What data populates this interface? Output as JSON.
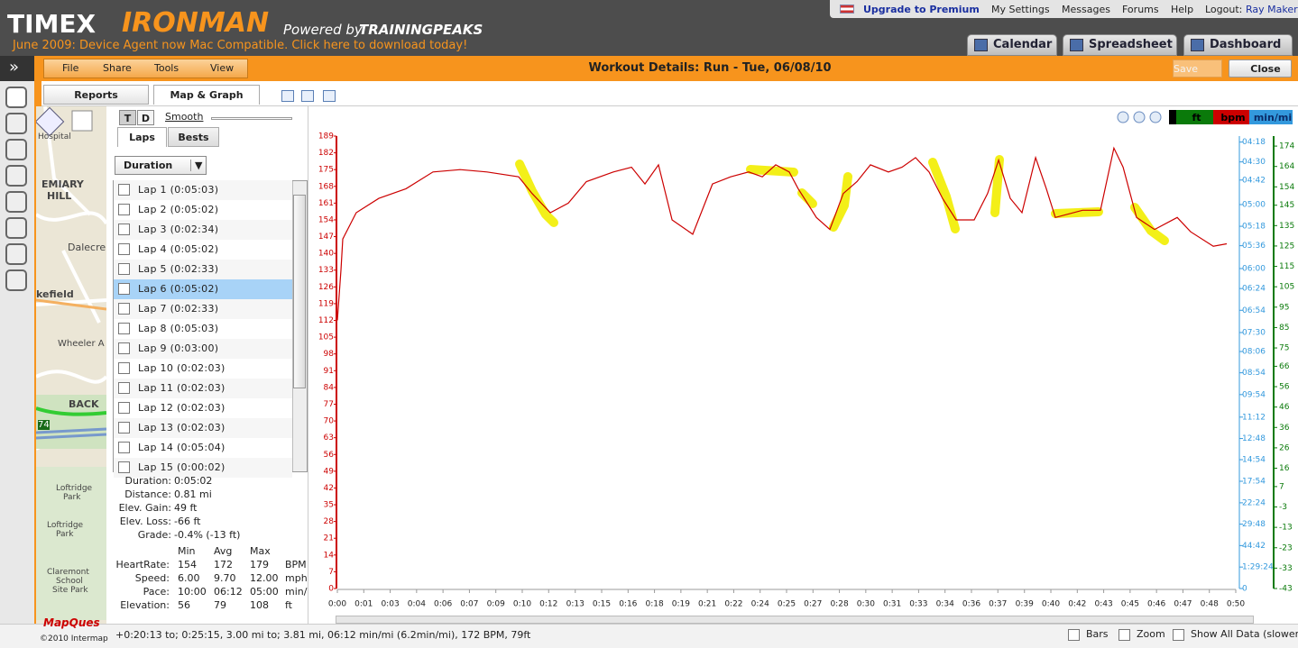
{
  "header": {
    "brand": "TIMEX",
    "brand_highlight": "IRONMAN",
    "powered_by": "Powered by",
    "partner": "TRAININGPEAKS",
    "announcement": "June 2009: Device Agent now Mac Compatible. Click here to download today!",
    "links": [
      "Upgrade to Premium",
      "My Settings",
      "Messages",
      "Forums",
      "Help"
    ],
    "logout_label": "Logout:",
    "user": "Ray Maker",
    "tabs": [
      "Calendar",
      "Spreadsheet",
      "Dashboard"
    ]
  },
  "sidebar": {
    "toggle": "»"
  },
  "toolbar": {
    "menus": [
      "File",
      "Share",
      "Tools",
      "View"
    ],
    "title": "Workout Details: Run - Tue, 06/08/10",
    "save": "Save",
    "close": "Close"
  },
  "view_tabs": [
    "Reports",
    "Map & Graph"
  ],
  "map": {
    "labels": [
      "Hospital",
      "EMIARY",
      "HILL",
      "Dalecre",
      "kefield",
      "Wheeler A",
      "BACK",
      "74",
      "Loftridge",
      "Park",
      "Loftridge",
      "Park",
      "Claremont",
      "School",
      "Site Park"
    ],
    "provider": "MapQues",
    "copyright": "©2010 Intermap"
  },
  "laps_panel": {
    "modes": [
      "T",
      "D"
    ],
    "smooth": "Smooth",
    "tabs": [
      "Laps",
      "Bests"
    ],
    "sort": "Duration",
    "laps": [
      "Lap 1 (0:05:03)",
      "Lap 2 (0:05:02)",
      "Lap 3 (0:02:34)",
      "Lap 4 (0:05:02)",
      "Lap 5 (0:02:33)",
      "Lap 6 (0:05:02)",
      "Lap 7 (0:02:33)",
      "Lap 8 (0:05:03)",
      "Lap 9 (0:03:00)",
      "Lap 10 (0:02:03)",
      "Lap 11 (0:02:03)",
      "Lap 12 (0:02:03)",
      "Lap 13 (0:02:03)",
      "Lap 14 (0:05:04)",
      "Lap 15 (0:00:02)"
    ],
    "selected": 5
  },
  "summary": {
    "rows": [
      [
        "Duration:",
        "0:05:02"
      ],
      [
        "Distance:",
        "0.81 mi"
      ],
      [
        "Elev. Gain:",
        "49 ft"
      ],
      [
        "Elev. Loss:",
        "-66 ft"
      ],
      [
        "Grade:",
        "-0.4% (-13 ft)"
      ]
    ],
    "table": {
      "header": [
        "Min",
        "Avg",
        "Max"
      ],
      "rows": [
        [
          "HeartRate:",
          "154",
          "172",
          "179",
          "BPM"
        ],
        [
          "Speed:",
          "6.00",
          "9.70",
          "12.00",
          "mph"
        ],
        [
          "Pace:",
          "10:00",
          "06:12",
          "05:00",
          "min/"
        ],
        [
          "Elevation:",
          "56",
          "79",
          "108",
          "ft"
        ]
      ]
    }
  },
  "chart_data": {
    "type": "line",
    "color": "#cc0000",
    "legend": [
      {
        "label": "ft",
        "color": "#0a7a0a"
      },
      {
        "label": "bpm",
        "color": "#cc0000"
      },
      {
        "label": "min/mi",
        "color": "#3399dd"
      }
    ],
    "x": [
      0,
      0.2,
      0.3,
      1.05,
      2.31,
      3.82,
      5.32,
      6.83,
      8.33,
      10.09,
      10.84,
      11.85,
      12.85,
      13.86,
      15.36,
      16.37,
      17.12,
      17.87,
      18.63,
      19.78,
      20.88,
      21.89,
      22.89,
      23.65,
      24.4,
      25.15,
      25.65,
      26.66,
      27.41,
      28.16,
      28.92,
      29.67,
      30.67,
      31.43,
      32.18,
      32.93,
      33.68,
      34.44,
      35.44,
      36.19,
      36.8,
      37.45,
      38.1,
      38.86,
      39.46,
      39.96,
      41.47,
      42.47,
      43.22,
      43.73,
      44.48,
      45.48,
      46.74,
      47.49,
      48.75,
      49.5
    ],
    "values": [
      112,
      133,
      146,
      157,
      163,
      167,
      174,
      175,
      174,
      172,
      165,
      157,
      161,
      170,
      174,
      176,
      169,
      177,
      154,
      148,
      169,
      172,
      174,
      172,
      177,
      174,
      167,
      155,
      150,
      165,
      170,
      177,
      174,
      176,
      180,
      174,
      163,
      154,
      154,
      165,
      179,
      163,
      157,
      180,
      167,
      155,
      158,
      158,
      184,
      176,
      155,
      150,
      155,
      149,
      143,
      144
    ],
    "xlim": [
      0,
      50
    ],
    "xticks": [
      {
        "value": 0,
        "label": "0:00"
      },
      {
        "value": 1.47,
        "label": "0:01"
      },
      {
        "value": 2.94,
        "label": "0:03"
      },
      {
        "value": 4.41,
        "label": "0:04"
      },
      {
        "value": 5.88,
        "label": "0:06"
      },
      {
        "value": 7.35,
        "label": "0:07"
      },
      {
        "value": 8.82,
        "label": "0:09"
      },
      {
        "value": 10.29,
        "label": "0:10"
      },
      {
        "value": 11.76,
        "label": "0:12"
      },
      {
        "value": 13.24,
        "label": "0:13"
      },
      {
        "value": 14.71,
        "label": "0:15"
      },
      {
        "value": 16.18,
        "label": "0:16"
      },
      {
        "value": 17.65,
        "label": "0:18"
      },
      {
        "value": 19.12,
        "label": "0:19"
      },
      {
        "value": 20.59,
        "label": "0:21"
      },
      {
        "value": 22.06,
        "label": "0:22"
      },
      {
        "value": 23.53,
        "label": "0:24"
      },
      {
        "value": 25,
        "label": "0:25"
      },
      {
        "value": 26.47,
        "label": "0:27"
      },
      {
        "value": 27.94,
        "label": "0:28"
      },
      {
        "value": 29.41,
        "label": "0:30"
      },
      {
        "value": 30.88,
        "label": "0:31"
      },
      {
        "value": 32.35,
        "label": "0:33"
      },
      {
        "value": 33.82,
        "label": "0:34"
      },
      {
        "value": 35.29,
        "label": "0:36"
      },
      {
        "value": 36.76,
        "label": "0:37"
      },
      {
        "value": 38.24,
        "label": "0:39"
      },
      {
        "value": 39.71,
        "label": "0:40"
      },
      {
        "value": 41.18,
        "label": "0:42"
      },
      {
        "value": 42.65,
        "label": "0:43"
      },
      {
        "value": 44.12,
        "label": "0:45"
      },
      {
        "value": 45.59,
        "label": "0:46"
      },
      {
        "value": 47.06,
        "label": "0:47"
      },
      {
        "value": 48.53,
        "label": "0:48"
      },
      {
        "value": 50,
        "label": "0:50"
      }
    ],
    "ylim": [
      0,
      189
    ],
    "yticks": [
      0,
      7,
      14,
      21,
      28,
      35,
      42,
      49,
      56,
      63,
      70,
      77,
      84,
      91,
      98,
      105,
      112,
      119,
      126,
      133,
      140,
      147,
      154,
      161,
      168,
      175,
      182,
      189
    ],
    "y2lim": [
      0,
      14.14
    ],
    "y2ticks": [
      0,
      {
        "value": 0.671,
        "label": "1:29:24"
      },
      {
        "value": 1.342,
        "label": "44:42"
      },
      {
        "value": 2.013,
        "label": "29:48"
      },
      {
        "value": 2.679,
        "label": "22:24"
      },
      {
        "value": 3.352,
        "label": "17:54"
      },
      {
        "value": 4.027,
        "label": "14:54"
      },
      {
        "value": 4.688,
        "label": "12:48"
      },
      {
        "value": 5.357,
        "label": "11:12"
      },
      {
        "value": 6.061,
        "label": "09:54"
      },
      {
        "value": 6.742,
        "label": "08:54"
      },
      {
        "value": 7.407,
        "label": "08:06"
      },
      {
        "value": 8,
        "label": "07:30"
      },
      {
        "value": 8.696,
        "label": "06:54"
      },
      {
        "value": 9.375,
        "label": "06:24"
      },
      {
        "value": 10,
        "label": "06:00"
      },
      {
        "value": 10.714,
        "label": "05:36"
      },
      {
        "value": 11.321,
        "label": "05:18"
      },
      {
        "value": 12,
        "label": "05:00"
      },
      {
        "value": 12.766,
        "label": "04:42"
      },
      {
        "value": 13.333,
        "label": "04:30"
      },
      {
        "value": 13.953,
        "label": "04:18"
      }
    ],
    "y3lim": [
      -43,
      178.9
    ],
    "y3ticks": [
      -43,
      -33,
      -23,
      -13,
      -3,
      7,
      16,
      26,
      36,
      46,
      56,
      66,
      75,
      85,
      95,
      105,
      115,
      125,
      135,
      145,
      154,
      164,
      174
    ]
  },
  "status": {
    "text": "+0:20:13 to; 0:25:15, 3.00 mi to; 3.81 mi, 06:12 min/mi (6.2min/mi), 172 BPM, 79ft",
    "options": [
      "Bars",
      "Zoom",
      "Show All Data (slower)"
    ]
  }
}
